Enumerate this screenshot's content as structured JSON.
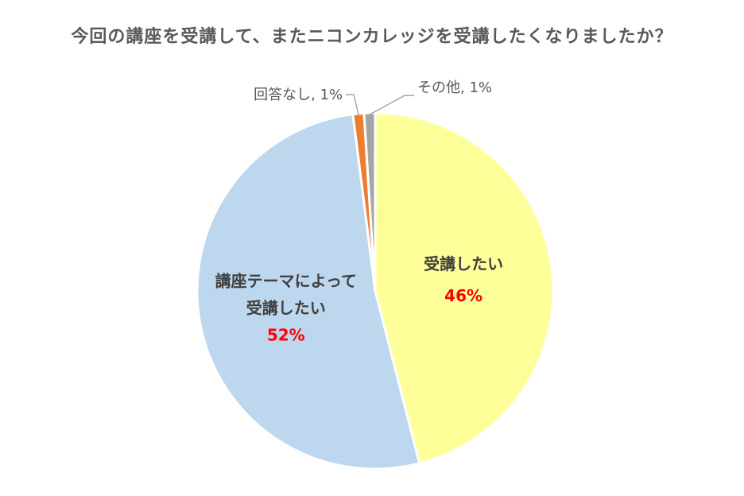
{
  "chart_data": {
    "type": "pie",
    "title": "今回の講座を受講して、またニコンカレッジを受講したくなりましたか？",
    "start": "top",
    "direction": "clockwise",
    "slices": [
      {
        "label": "受講したい",
        "label_lines": [
          "受講したい"
        ],
        "value": 46,
        "value_label": "46%",
        "color": "#ffff99",
        "label_position": "inside"
      },
      {
        "label": "講座テーマによって受講したい",
        "label_lines": [
          "講座テーマによって",
          "受講したい"
        ],
        "value": 52,
        "value_label": "52%",
        "color": "#bdd7ee",
        "label_position": "inside"
      },
      {
        "label": "回答なし",
        "label_lines": [
          "回答なし"
        ],
        "value": 1,
        "value_label": "1%",
        "combined_label": "回答なし, 1%",
        "color": "#ed7d31",
        "label_position": "outside"
      },
      {
        "label": "その他",
        "label_lines": [
          "その他"
        ],
        "value": 1,
        "value_label": "1%",
        "combined_label": "その他, 1%",
        "color": "#a5a5a5",
        "label_position": "outside"
      }
    ]
  }
}
